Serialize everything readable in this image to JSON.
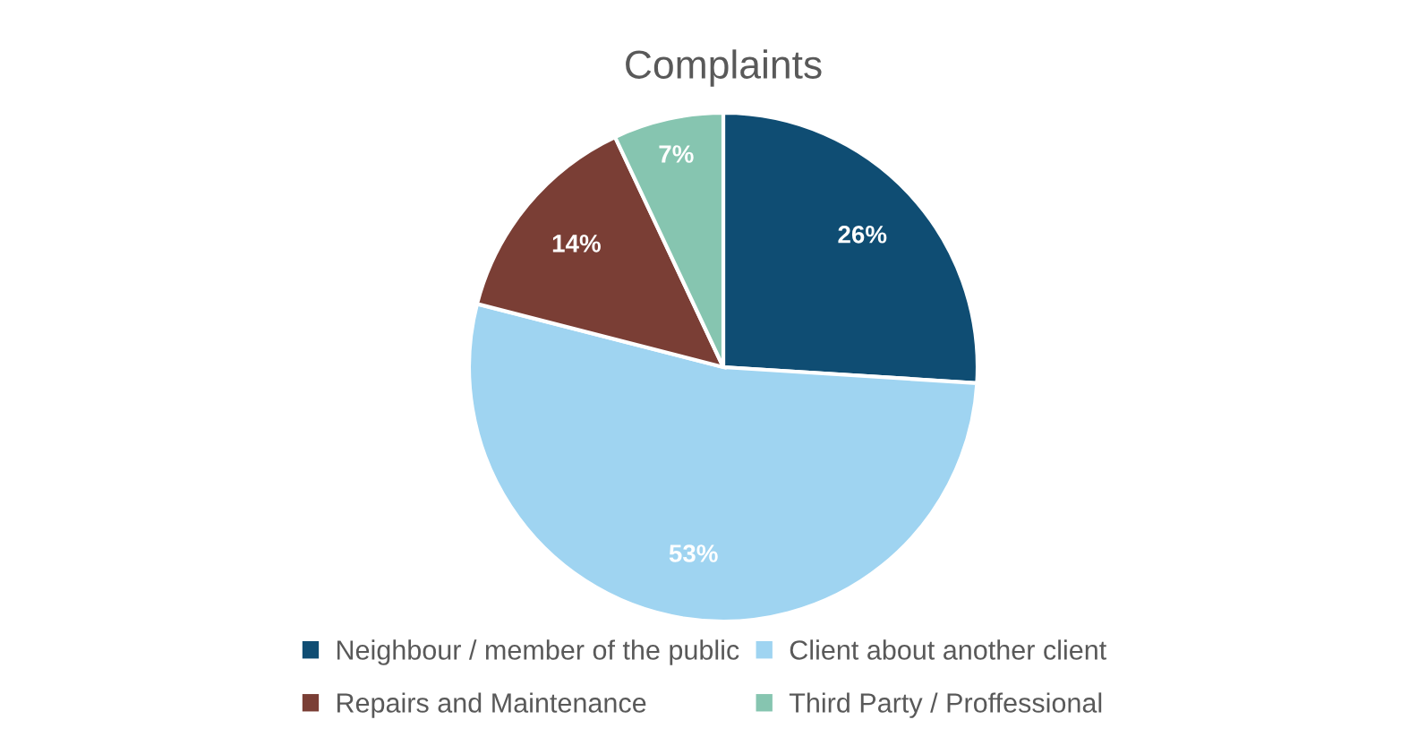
{
  "chart_data": {
    "type": "pie",
    "title": "Complaints",
    "categories": [
      "Neighbour / member of the public",
      "Client about another client",
      "Repairs and Maintenance",
      "Third Party / Proffessional"
    ],
    "values": [
      26,
      53,
      14,
      7
    ],
    "colors": [
      "#0f4d73",
      "#9fd4f1",
      "#7a3e35",
      "#86c5b0"
    ],
    "value_labels": [
      "26%",
      "53%",
      "14%",
      "7%"
    ],
    "legend": "bottom"
  }
}
